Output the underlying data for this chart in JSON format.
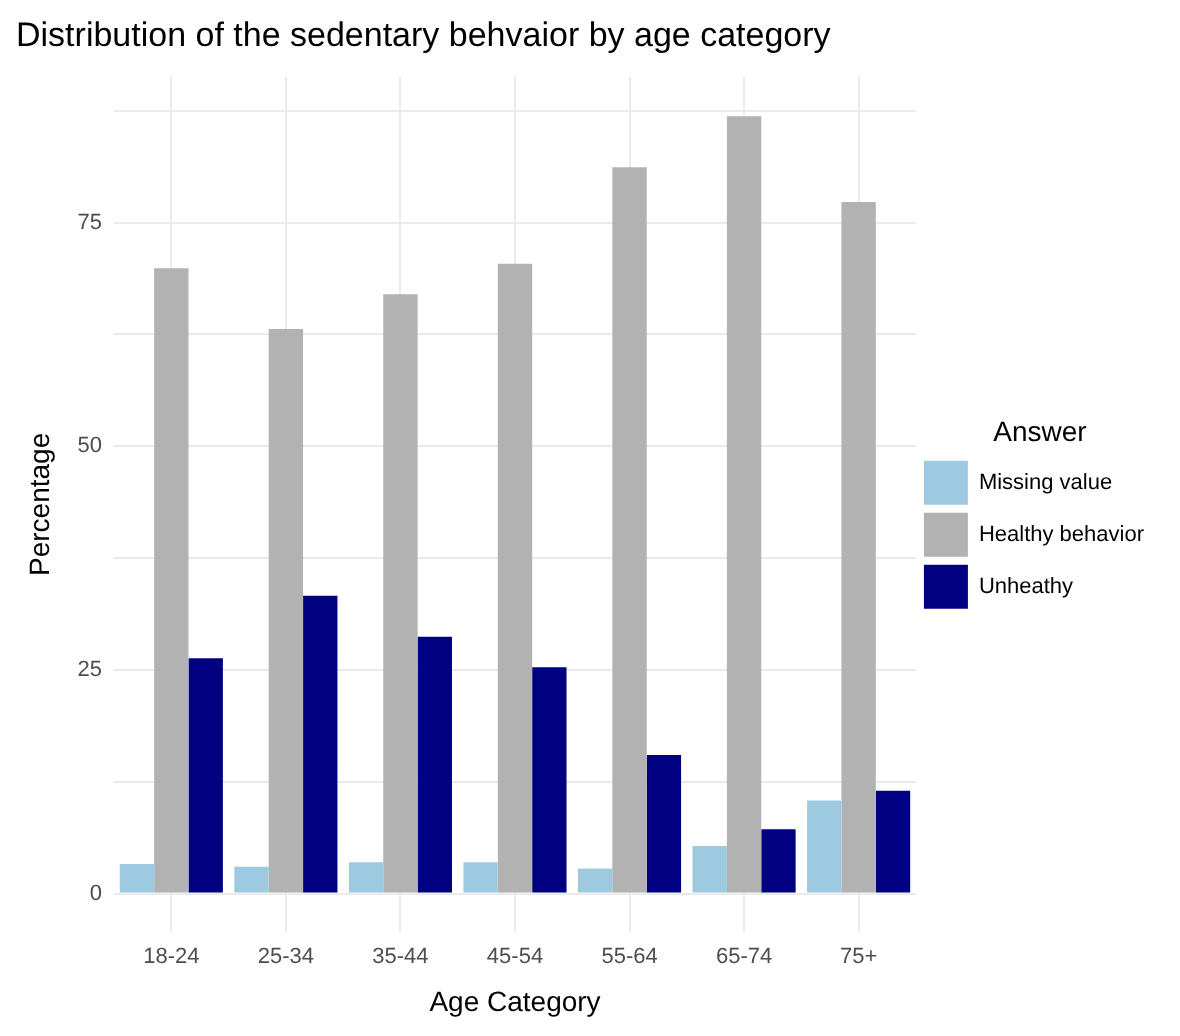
{
  "chart_data": {
    "type": "bar",
    "title": "Distribution of the sedentary behvaior by age category",
    "xlabel": "Age Category",
    "ylabel": "Percentage",
    "legend_title": "Answer",
    "categories": [
      "18-24",
      "25-34",
      "35-44",
      "45-54",
      "55-64",
      "65-74",
      "75+"
    ],
    "series": [
      {
        "name": "Missing value",
        "color": "#9ecae1",
        "values": [
          3.3,
          3.0,
          3.5,
          3.5,
          2.8,
          5.3,
          10.4
        ]
      },
      {
        "name": "Healthy behavior",
        "color": "#b2b2b2",
        "values": [
          69.9,
          63.1,
          67.0,
          70.4,
          81.2,
          86.9,
          77.3
        ]
      },
      {
        "name": "Unheathy",
        "color": "#000080",
        "values": [
          26.3,
          33.3,
          28.7,
          25.3,
          15.5,
          7.2,
          11.5
        ]
      }
    ],
    "ylim": [
      -4.3,
      91.3
    ],
    "yticks": [
      0,
      {
        "value": 12.5,
        "label": null
      },
      25,
      {
        "value": 37.5,
        "label": null
      },
      50,
      {
        "value": 62.5,
        "label": null
      },
      75,
      {
        "value": 87.5,
        "label": null
      }
    ],
    "grid": true,
    "legend": "right"
  }
}
